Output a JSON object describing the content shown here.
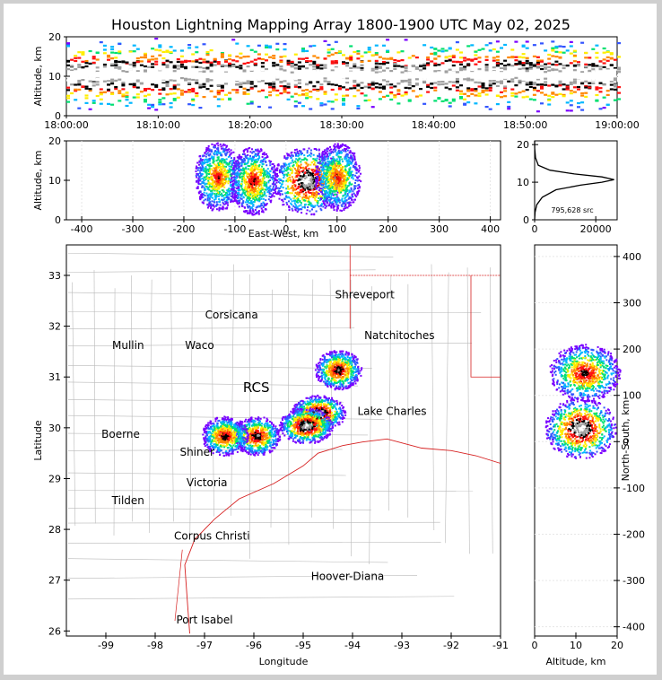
{
  "title": "Houston Lightning Mapping Array 1800-1900 UTC May 02, 2025",
  "colors": {
    "density": [
      "#7a00ff",
      "#3355ff",
      "#00b7ff",
      "#00e070",
      "#ffee00",
      "#ff8800",
      "#ff1111",
      "#000000",
      "#a0a0a0",
      "#ffffff"
    ],
    "state_border": "#d62020",
    "county_border": "#b9b9b9",
    "coast": "#d62020"
  },
  "chart_data": [
    {
      "type": "heatmap",
      "panel": "altitude-time",
      "xlabel": "",
      "ylabel": "Altitude, km",
      "x_ticks": [
        "18:00:00",
        "18:10:00",
        "18:20:00",
        "18:30:00",
        "18:40:00",
        "18:50:00",
        "19:00:00"
      ],
      "y_ticks": [
        0,
        10,
        20
      ],
      "xlim": [
        0,
        60
      ],
      "ylim": [
        0,
        20
      ],
      "band_center_km": 10.5
    },
    {
      "type": "heatmap",
      "panel": "east-west-altitude",
      "xlabel": "East-West, km",
      "ylabel": "Altitude, km",
      "x_ticks": [
        -400,
        -300,
        -200,
        -100,
        0,
        100,
        200,
        300,
        400
      ],
      "y_ticks": [
        0,
        10,
        20
      ],
      "xlim": [
        -430,
        420
      ],
      "ylim": [
        0,
        20
      ],
      "clusters": [
        {
          "x": -135,
          "alt": 11,
          "intensity": 0.7
        },
        {
          "x": -65,
          "alt": 10,
          "intensity": 0.75
        },
        {
          "x": 40,
          "alt": 10,
          "intensity": 1.0
        },
        {
          "x": 100,
          "alt": 11,
          "intensity": 0.7
        }
      ]
    },
    {
      "type": "line",
      "panel": "altitude-histogram",
      "annotation": "795,628 src",
      "x_ticks": [
        0,
        20000
      ],
      "y_ticks": [
        0,
        10,
        20
      ],
      "xlim": [
        0,
        27000
      ],
      "ylim": [
        0,
        21
      ],
      "points": [
        [
          0,
          0
        ],
        [
          150,
          2
        ],
        [
          700,
          4
        ],
        [
          2500,
          6
        ],
        [
          7000,
          8
        ],
        [
          15000,
          9.2
        ],
        [
          22000,
          10
        ],
        [
          26000,
          10.7
        ],
        [
          22000,
          11.4
        ],
        [
          13000,
          12.2
        ],
        [
          5000,
          13.2
        ],
        [
          1200,
          14.5
        ],
        [
          300,
          16.5
        ],
        [
          40,
          19
        ],
        [
          0,
          21
        ]
      ]
    },
    {
      "type": "heatmap",
      "panel": "plan-view",
      "xlabel": "Longitude",
      "ylabel": "Latitude",
      "x_ticks": [
        -99,
        -98,
        -97,
        -96,
        -95,
        -94,
        -93,
        -92,
        -91
      ],
      "y_ticks": [
        26,
        27,
        28,
        29,
        30,
        31,
        32,
        33
      ],
      "xlim": [
        -99.8,
        -91
      ],
      "ylim": [
        25.9,
        33.6
      ],
      "places": [
        {
          "name": "Shreveport",
          "lon": -93.75,
          "lat": 32.55,
          "color": "#000000"
        },
        {
          "name": "Corsicana",
          "lon": -96.45,
          "lat": 32.15,
          "color": "#000000"
        },
        {
          "name": "Natchitoches",
          "lon": -93.05,
          "lat": 31.75,
          "color": "#000000"
        },
        {
          "name": "Mullin",
          "lon": -98.55,
          "lat": 31.55,
          "color": "#ff8c2a"
        },
        {
          "name": "Waco",
          "lon": -97.1,
          "lat": 31.55,
          "color": "#000000"
        },
        {
          "name": "RCS",
          "lon": -95.95,
          "lat": 30.7,
          "color": "#8a1515"
        },
        {
          "name": "Lake Charles",
          "lon": -93.2,
          "lat": 30.25,
          "color": "#000000"
        },
        {
          "name": "Boerne",
          "lon": -98.7,
          "lat": 29.8,
          "color": "#000000"
        },
        {
          "name": "Shiner",
          "lon": -97.15,
          "lat": 29.45,
          "color": "#000000"
        },
        {
          "name": "Victoria",
          "lon": -96.95,
          "lat": 28.85,
          "color": "#000000"
        },
        {
          "name": "Tilden",
          "lon": -98.55,
          "lat": 28.5,
          "color": "#000000"
        },
        {
          "name": "Corpus Christi",
          "lon": -96.85,
          "lat": 27.8,
          "color": "#000000"
        },
        {
          "name": "Hoover-Diana",
          "lon": -94.1,
          "lat": 27.0,
          "color": "#1a1adb"
        },
        {
          "name": "Port Isabel",
          "lon": -97.0,
          "lat": 26.15,
          "color": "#000000"
        }
      ],
      "clusters": [
        {
          "lon": -94.3,
          "lat": 31.15,
          "intensity": 0.85
        },
        {
          "lon": -94.7,
          "lat": 30.3,
          "intensity": 1.0
        },
        {
          "lon": -94.95,
          "lat": 30.05,
          "intensity": 1.0
        },
        {
          "lon": -95.95,
          "lat": 29.85,
          "intensity": 0.85
        },
        {
          "lon": -96.6,
          "lat": 29.85,
          "intensity": 0.8
        }
      ]
    },
    {
      "type": "heatmap",
      "panel": "altitude-north-south",
      "xlabel": "Altitude, km",
      "ylabel": "North-South, km",
      "x_ticks": [
        0,
        10,
        20
      ],
      "y_ticks": [
        -400,
        -300,
        -200,
        -100,
        0,
        100,
        200,
        300,
        400
      ],
      "xlim": [
        0,
        20
      ],
      "ylim": [
        -420,
        425
      ],
      "clusters": [
        {
          "alt": 12,
          "y": 150,
          "intensity": 0.8
        },
        {
          "alt": 11,
          "y": 30,
          "intensity": 1.0
        }
      ]
    }
  ]
}
